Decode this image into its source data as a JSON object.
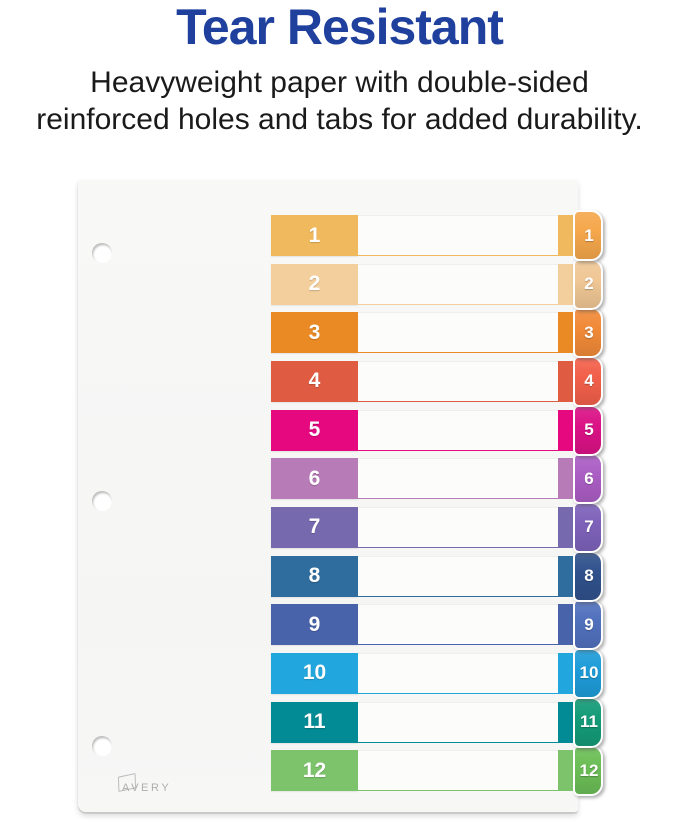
{
  "header": {
    "title": "Tear Resistant",
    "subtitle_line1": "Heavyweight paper with double-sided",
    "subtitle_line2": "reinforced holes and tabs for added durability.",
    "title_color": "#20409E",
    "subtitle_color": "#1a1a1a"
  },
  "divider": {
    "brand": "AVERY",
    "page_color": "#f7f7f6",
    "hole_count": 3,
    "tabs": [
      {
        "label": "1",
        "block_color": "#F1B95E",
        "tab_color": "#F5A74B"
      },
      {
        "label": "2",
        "block_color": "#F2CF9C",
        "tab_color": "#F0C795"
      },
      {
        "label": "3",
        "block_color": "#EA8A25",
        "tab_color": "#F18A38"
      },
      {
        "label": "4",
        "block_color": "#DF5B41",
        "tab_color": "#F2604A"
      },
      {
        "label": "5",
        "block_color": "#E5087E",
        "tab_color": "#DB1286"
      },
      {
        "label": "6",
        "block_color": "#B77BB7",
        "tab_color": "#AB5EC4"
      },
      {
        "label": "7",
        "block_color": "#7669AE",
        "tab_color": "#7E62BA"
      },
      {
        "label": "8",
        "block_color": "#2F6D9F",
        "tab_color": "#30518C"
      },
      {
        "label": "9",
        "block_color": "#4963AB",
        "tab_color": "#5171BD"
      },
      {
        "label": "10",
        "block_color": "#21A7DD",
        "tab_color": "#1E9CD8"
      },
      {
        "label": "11",
        "block_color": "#038B95",
        "tab_color": "#149B77"
      },
      {
        "label": "12",
        "block_color": "#7DC36B",
        "tab_color": "#6CBE57"
      }
    ]
  }
}
